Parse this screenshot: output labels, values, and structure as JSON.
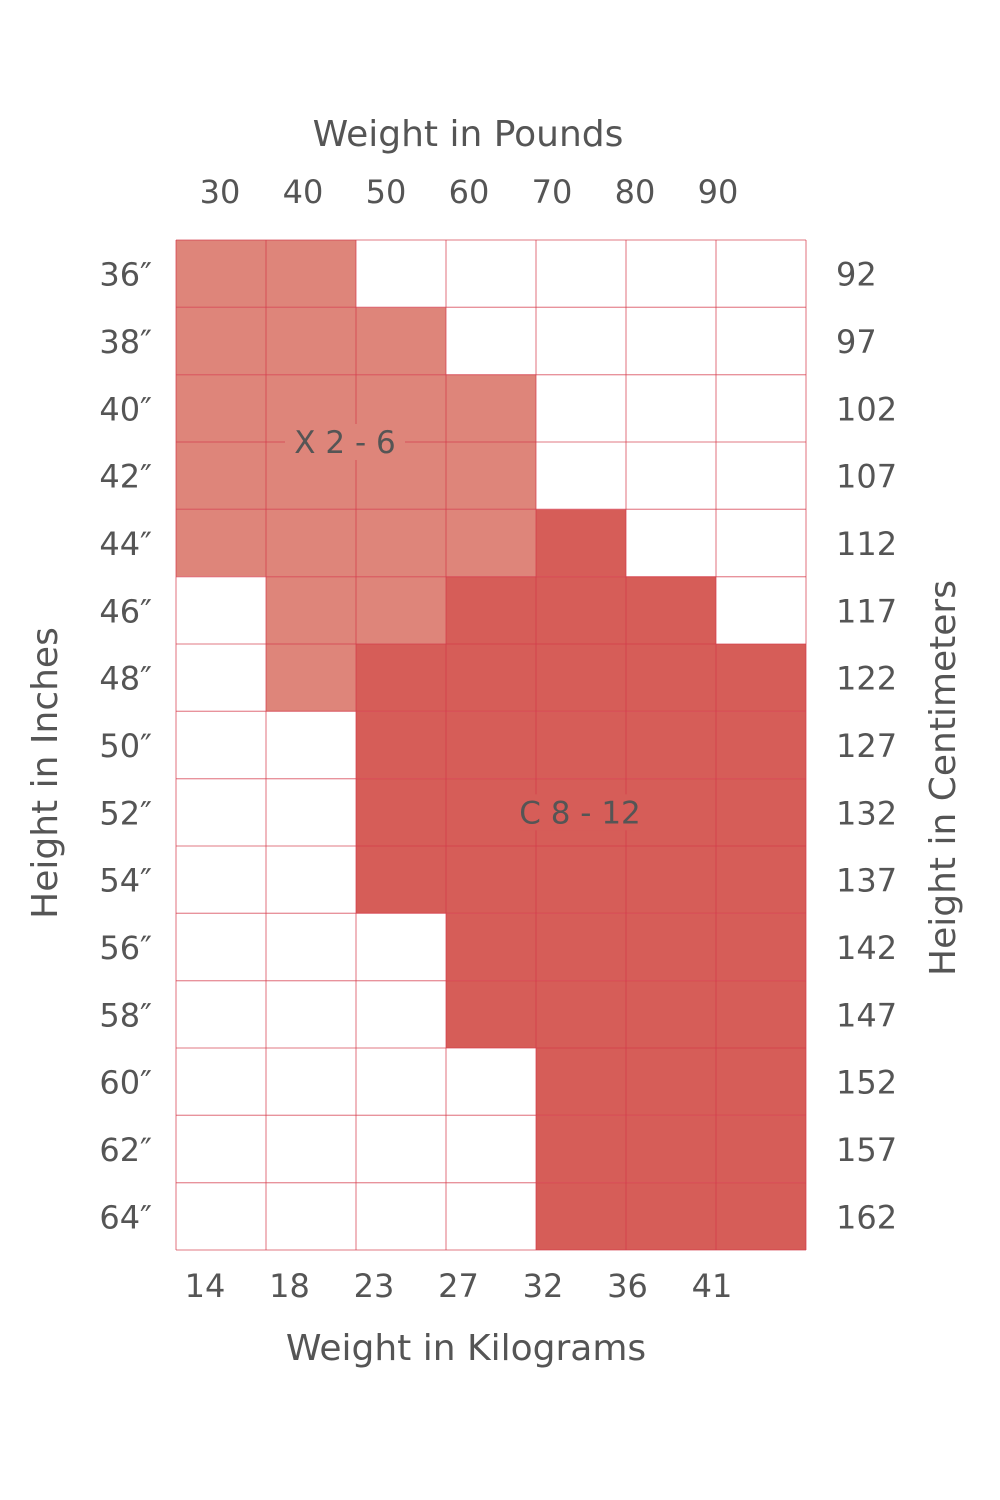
{
  "chart_data": {
    "type": "heatmap",
    "top_axis_title": "Weight in Pounds",
    "top_ticks": [
      "30",
      "40",
      "50",
      "60",
      "70",
      "80",
      "90"
    ],
    "bottom_axis_title": "Weight in Kilograms",
    "bottom_ticks": [
      "14",
      "18",
      "23",
      "27",
      "32",
      "36",
      "41"
    ],
    "left_axis_title": "Height in Inches",
    "left_ticks": [
      "36″",
      "38″",
      "40″",
      "42″",
      "44″",
      "46″",
      "48″",
      "50″",
      "52″",
      "54″",
      "56″",
      "58″",
      "60″",
      "62″",
      "64″"
    ],
    "right_axis_title": "Height in Centimeters",
    "right_ticks": [
      "92",
      "97",
      "102",
      "107",
      "112",
      "117",
      "122",
      "127",
      "132",
      "137",
      "142",
      "147",
      "152",
      "157",
      "162"
    ],
    "regions": [
      {
        "code": "X",
        "label": "X 2 - 6",
        "color": "#de857a"
      },
      {
        "code": "C",
        "label": "C 8 - 12",
        "color": "#d65d58"
      }
    ],
    "grid": [
      [
        "X",
        "X",
        "",
        "",
        "",
        "",
        ""
      ],
      [
        "X",
        "X",
        "X",
        "",
        "",
        "",
        ""
      ],
      [
        "X",
        "X",
        "X",
        "X",
        "",
        "",
        ""
      ],
      [
        "X",
        "X",
        "X",
        "X",
        "",
        "",
        ""
      ],
      [
        "X",
        "X",
        "X",
        "X",
        "C",
        "",
        ""
      ],
      [
        "",
        "X",
        "X",
        "C",
        "C",
        "C",
        ""
      ],
      [
        "",
        "X",
        "C",
        "C",
        "C",
        "C",
        "C"
      ],
      [
        "",
        "",
        "C",
        "C",
        "C",
        "C",
        "C"
      ],
      [
        "",
        "",
        "C",
        "C",
        "C",
        "C",
        "C"
      ],
      [
        "",
        "",
        "C",
        "C",
        "C",
        "C",
        "C"
      ],
      [
        "",
        "",
        "",
        "C",
        "C",
        "C",
        "C"
      ],
      [
        "",
        "",
        "",
        "C",
        "C",
        "C",
        "C"
      ],
      [
        "",
        "",
        "",
        "",
        "C",
        "C",
        "C"
      ],
      [
        "",
        "",
        "",
        "",
        "C",
        "C",
        "C"
      ],
      [
        "",
        "",
        "",
        "",
        "C",
        "C",
        "C"
      ]
    ],
    "gridline_color": "#d63a4a"
  }
}
